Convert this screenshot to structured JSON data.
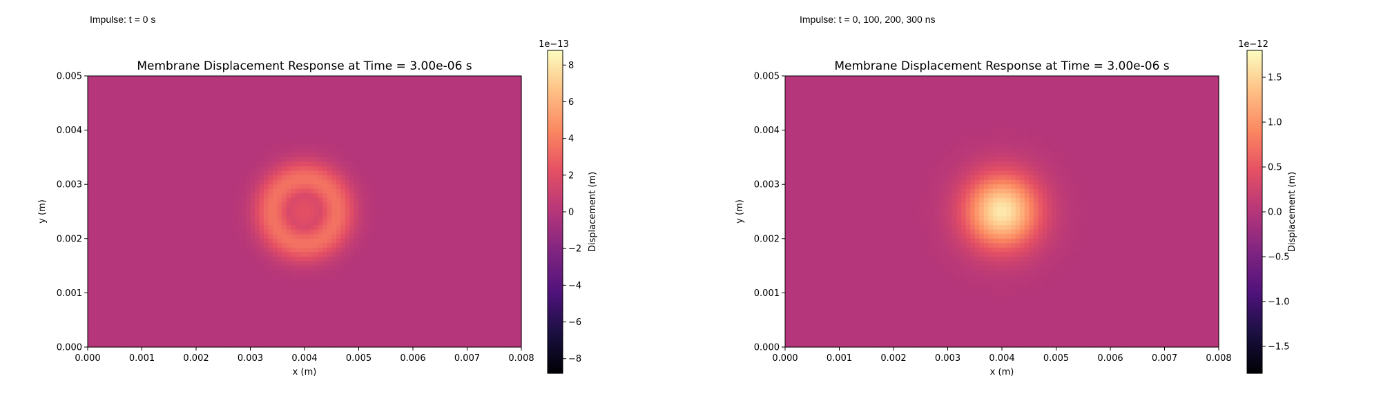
{
  "panels": [
    {
      "impulse_label": "Impulse: t = 0 s"
    },
    {
      "impulse_label": "Impulse: t = 0, 100, 200, 300 ns"
    }
  ],
  "chart_data": [
    {
      "type": "heatmap",
      "title": "Membrane Displacement Response at Time = 3.00e-06 s",
      "xlabel": "x (m)",
      "ylabel": "y (m)",
      "xlim": [
        0,
        0.008
      ],
      "ylim": [
        0,
        0.005
      ],
      "x_ticks": [
        "0.000",
        "0.001",
        "0.002",
        "0.003",
        "0.004",
        "0.005",
        "0.006",
        "0.007",
        "0.008"
      ],
      "y_ticks": [
        "0.000",
        "0.001",
        "0.002",
        "0.003",
        "0.004",
        "0.005"
      ],
      "colormap": "magma",
      "colorbar": {
        "label": "Displacement (m)",
        "multiplier": "1e−13",
        "range": [
          -8.8e-13,
          8.8e-13
        ],
        "ticks": [
          -8,
          -6,
          -4,
          -2,
          0,
          2,
          4,
          6,
          8
        ],
        "tick_labels": [
          "−8",
          "−6",
          "−4",
          "−2",
          "0",
          "2",
          "4",
          "6",
          "8"
        ]
      },
      "field": {
        "pattern": "ring",
        "center": [
          0.004,
          0.0025
        ],
        "ring_radius": 0.0006,
        "ring_width": 0.00035,
        "ring_peak": 3.6e-13,
        "center_value": 2.2e-13
      }
    },
    {
      "type": "heatmap",
      "title": "Membrane Displacement Response at Time = 3.00e-06 s",
      "xlabel": "x (m)",
      "ylabel": "y (m)",
      "xlim": [
        0,
        0.008
      ],
      "ylim": [
        0,
        0.005
      ],
      "x_ticks": [
        "0.000",
        "0.001",
        "0.002",
        "0.003",
        "0.004",
        "0.005",
        "0.006",
        "0.007",
        "0.008"
      ],
      "y_ticks": [
        "0.000",
        "0.001",
        "0.002",
        "0.003",
        "0.004",
        "0.005"
      ],
      "colormap": "magma",
      "colorbar": {
        "label": "Displacement (m)",
        "multiplier": "1e−12",
        "range": [
          -1.8e-12,
          1.8e-12
        ],
        "ticks": [
          -1.5,
          -1.0,
          -0.5,
          0.0,
          0.5,
          1.0,
          1.5
        ],
        "tick_labels": [
          "−1.5",
          "−1.0",
          "−0.5",
          "0.0",
          "0.5",
          "1.0",
          "1.5"
        ]
      },
      "field": {
        "pattern": "peak",
        "center": [
          0.004,
          0.0025
        ],
        "sigma": 0.00048,
        "peak": 1.65e-12
      }
    }
  ]
}
